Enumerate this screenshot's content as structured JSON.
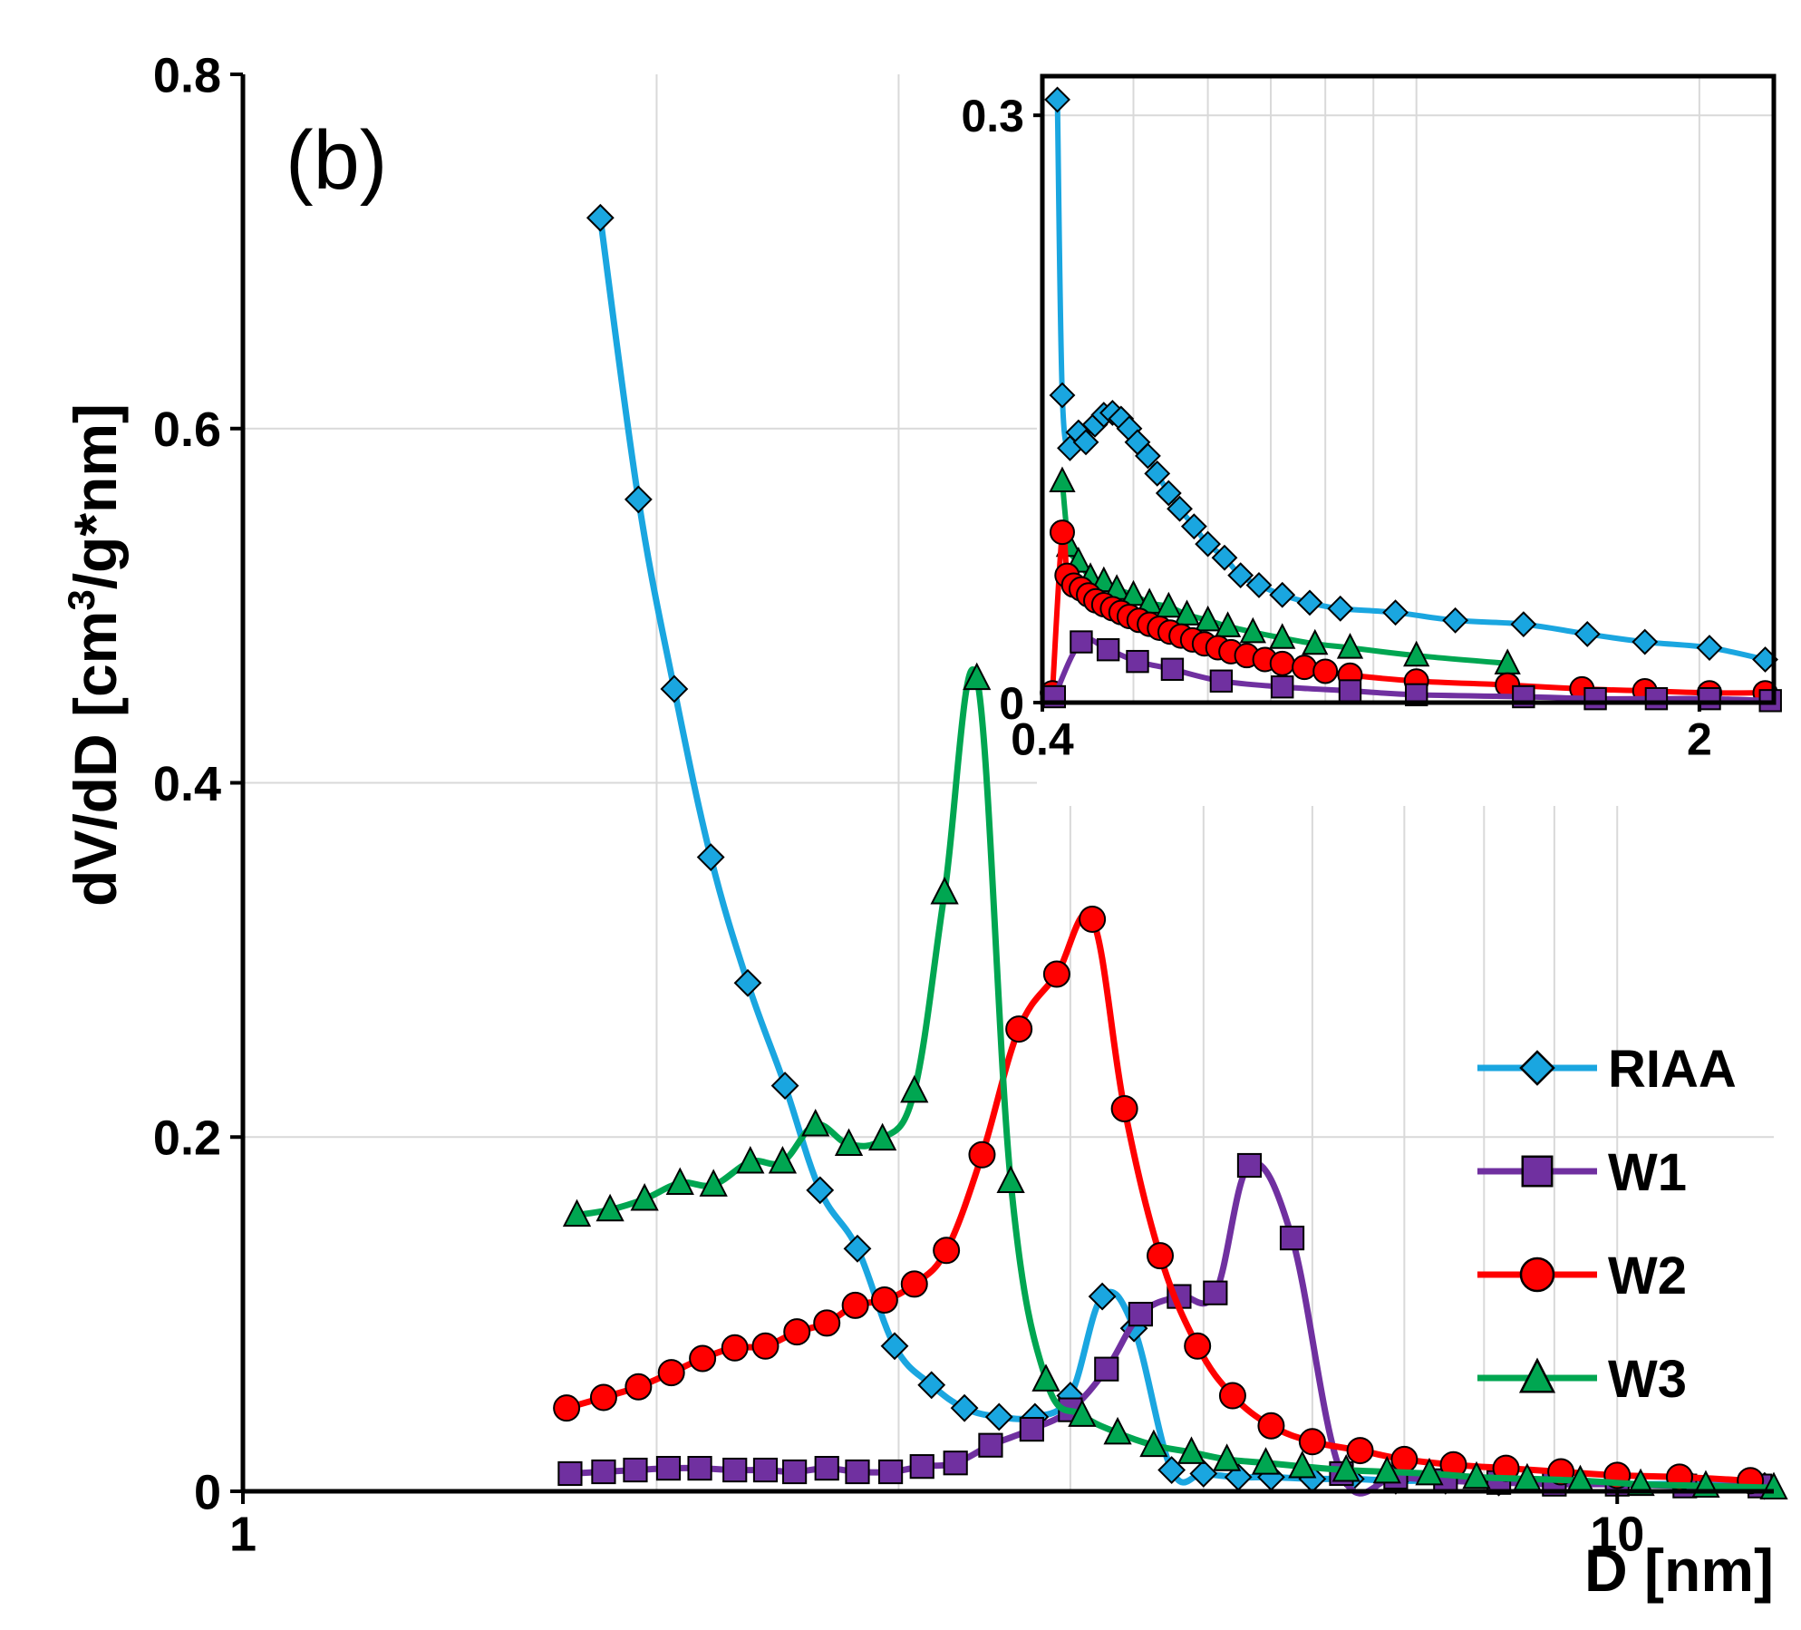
{
  "chart_data": [
    {
      "type": "line",
      "panel_label": "(b)",
      "xscale": "log",
      "xlim": [
        1,
        13
      ],
      "ylim": [
        0,
        0.8
      ],
      "xticks": [
        {
          "value": 1,
          "label": "1"
        },
        {
          "value": 10,
          "label": "10"
        }
      ],
      "yticks": [
        {
          "value": 0,
          "label": "0"
        },
        {
          "value": 0.2,
          "label": "0.2"
        },
        {
          "value": 0.4,
          "label": "0.4"
        },
        {
          "value": 0.6,
          "label": "0.6"
        },
        {
          "value": 0.8,
          "label": "0.8"
        }
      ],
      "xlabel": "D [nm]",
      "ylabel_main": "dV/dD [cm",
      "ylabel_sup": "3",
      "ylabel_rest": "/g*nm]",
      "grid": true,
      "legend_position": "right",
      "series": [
        {
          "name": "RIAA",
          "color": "#1aa6e0",
          "marker": "diamond",
          "x": [
            1.82,
            1.94,
            2.06,
            2.19,
            2.33,
            2.48,
            2.63,
            2.8,
            2.98,
            3.17,
            3.35,
            3.55,
            3.77,
            4.0,
            4.22,
            4.45,
            4.74,
            5.0,
            5.3,
            5.6,
            6.0,
            6.4,
            6.9,
            7.5,
            8.2,
            9.0,
            10.0,
            11.3,
            12.8
          ],
          "y": [
            0.719,
            0.56,
            0.453,
            0.358,
            0.287,
            0.229,
            0.17,
            0.137,
            0.082,
            0.06,
            0.047,
            0.042,
            0.042,
            0.054,
            0.11,
            0.092,
            0.012,
            0.01,
            0.008,
            0.008,
            0.007,
            0.007,
            0.006,
            0.006,
            0.005,
            0.005,
            0.004,
            0.004,
            0.003
          ]
        },
        {
          "name": "W1",
          "color": "#7030a0",
          "marker": "square",
          "x": [
            1.73,
            1.83,
            1.93,
            2.04,
            2.15,
            2.28,
            2.4,
            2.52,
            2.66,
            2.8,
            2.96,
            3.12,
            3.3,
            3.5,
            3.75,
            4.0,
            4.25,
            4.5,
            4.8,
            5.1,
            5.4,
            5.8,
            6.3,
            6.9,
            7.5,
            8.2,
            9.0,
            10.0,
            11.2,
            12.7
          ],
          "y": [
            0.01,
            0.011,
            0.012,
            0.013,
            0.013,
            0.012,
            0.012,
            0.011,
            0.013,
            0.011,
            0.011,
            0.014,
            0.016,
            0.026,
            0.035,
            0.046,
            0.069,
            0.1,
            0.11,
            0.112,
            0.184,
            0.143,
            0.01,
            0.008,
            0.006,
            0.005,
            0.004,
            0.004,
            0.003,
            0.003
          ]
        },
        {
          "name": "W2",
          "color": "#ff0000",
          "marker": "circle",
          "x": [
            1.72,
            1.83,
            1.94,
            2.05,
            2.16,
            2.28,
            2.4,
            2.53,
            2.66,
            2.79,
            2.93,
            3.08,
            3.25,
            3.45,
            3.67,
            3.91,
            4.15,
            4.38,
            4.65,
            4.95,
            5.25,
            5.6,
            6.0,
            6.5,
            7.0,
            7.6,
            8.3,
            9.1,
            10.0,
            11.1,
            12.5
          ],
          "y": [
            0.047,
            0.053,
            0.059,
            0.067,
            0.075,
            0.081,
            0.082,
            0.09,
            0.095,
            0.105,
            0.108,
            0.117,
            0.136,
            0.19,
            0.261,
            0.292,
            0.323,
            0.216,
            0.133,
            0.082,
            0.054,
            0.037,
            0.028,
            0.023,
            0.018,
            0.015,
            0.013,
            0.011,
            0.009,
            0.008,
            0.006
          ]
        },
        {
          "name": "W3",
          "color": "#00a651",
          "marker": "triangle",
          "x": [
            1.75,
            1.85,
            1.96,
            2.08,
            2.2,
            2.34,
            2.47,
            2.61,
            2.76,
            2.92,
            3.08,
            3.24,
            3.42,
            3.62,
            3.84,
            4.08,
            4.33,
            4.6,
            4.9,
            5.2,
            5.55,
            5.9,
            6.35,
            6.8,
            7.3,
            7.9,
            8.6,
            9.4,
            10.4,
            11.6,
            13.0
          ],
          "y": [
            0.156,
            0.159,
            0.165,
            0.174,
            0.173,
            0.186,
            0.186,
            0.207,
            0.196,
            0.199,
            0.226,
            0.338,
            0.459,
            0.175,
            0.063,
            0.043,
            0.033,
            0.026,
            0.022,
            0.018,
            0.016,
            0.014,
            0.012,
            0.011,
            0.01,
            0.008,
            0.007,
            0.006,
            0.004,
            0.003,
            0.002
          ]
        }
      ]
    },
    {
      "type": "line",
      "role": "inset",
      "xscale": "log",
      "xlim": [
        0.4,
        2.4
      ],
      "ylim": [
        0,
        0.32
      ],
      "xticks": [
        {
          "value": 0.4,
          "label": "0.4"
        },
        {
          "value": 2,
          "label": "2"
        }
      ],
      "yticks": [
        {
          "value": 0,
          "label": "0"
        },
        {
          "value": 0.3,
          "label": "0.3"
        }
      ],
      "grid": true,
      "series": [
        {
          "name": "RIAA",
          "color": "#1aa6e0",
          "marker": "diamond",
          "x": [
            0.415,
            0.42,
            0.428,
            0.437,
            0.445,
            0.455,
            0.465,
            0.475,
            0.485,
            0.495,
            0.505,
            0.518,
            0.53,
            0.545,
            0.56,
            0.58,
            0.6,
            0.625,
            0.65,
            0.68,
            0.72,
            0.77,
            0.83,
            0.95,
            1.1,
            1.3,
            1.52,
            1.75,
            2.05,
            2.35
          ],
          "y": [
            0.308,
            0.157,
            0.13,
            0.138,
            0.133,
            0.142,
            0.147,
            0.148,
            0.145,
            0.14,
            0.133,
            0.126,
            0.117,
            0.107,
            0.099,
            0.09,
            0.081,
            0.074,
            0.065,
            0.06,
            0.055,
            0.051,
            0.048,
            0.046,
            0.042,
            0.04,
            0.035,
            0.031,
            0.028,
            0.022
          ]
        },
        {
          "name": "W3",
          "color": "#00a651",
          "marker": "triangle",
          "x": [
            0.42,
            0.427,
            0.437,
            0.45,
            0.465,
            0.48,
            0.5,
            0.52,
            0.545,
            0.57,
            0.6,
            0.63,
            0.67,
            0.72,
            0.78,
            0.85,
            1.0,
            1.25
          ],
          "y": [
            0.113,
            0.08,
            0.072,
            0.064,
            0.062,
            0.058,
            0.055,
            0.051,
            0.049,
            0.045,
            0.042,
            0.039,
            0.036,
            0.033,
            0.03,
            0.028,
            0.024,
            0.02
          ]
        },
        {
          "name": "W2",
          "color": "#ff0000",
          "marker": "circle",
          "x": [
            0.41,
            0.42,
            0.425,
            0.432,
            0.44,
            0.448,
            0.456,
            0.465,
            0.475,
            0.485,
            0.495,
            0.507,
            0.52,
            0.533,
            0.547,
            0.562,
            0.578,
            0.595,
            0.615,
            0.635,
            0.66,
            0.69,
            0.72,
            0.76,
            0.8,
            0.85,
            1.0,
            1.25,
            1.5,
            1.75,
            2.05,
            2.35
          ],
          "y": [
            0.005,
            0.087,
            0.065,
            0.06,
            0.058,
            0.055,
            0.052,
            0.05,
            0.048,
            0.046,
            0.044,
            0.042,
            0.04,
            0.038,
            0.036,
            0.034,
            0.032,
            0.03,
            0.028,
            0.026,
            0.024,
            0.022,
            0.02,
            0.018,
            0.016,
            0.014,
            0.011,
            0.009,
            0.007,
            0.006,
            0.005,
            0.005
          ]
        },
        {
          "name": "W1",
          "color": "#7030a0",
          "marker": "square",
          "x": [
            0.412,
            0.44,
            0.47,
            0.505,
            0.55,
            0.62,
            0.72,
            0.85,
            1.0,
            1.3,
            1.55,
            1.8,
            2.05,
            2.38
          ],
          "y": [
            0.003,
            0.031,
            0.027,
            0.021,
            0.017,
            0.011,
            0.008,
            0.006,
            0.004,
            0.003,
            0.002,
            0.002,
            0.002,
            0.001
          ]
        }
      ]
    }
  ]
}
